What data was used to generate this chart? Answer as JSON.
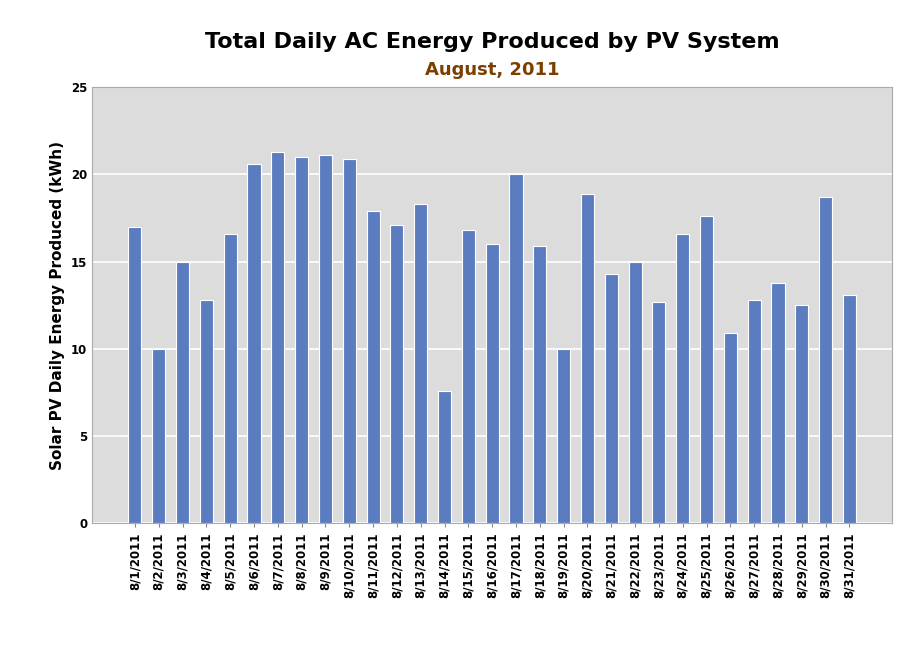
{
  "title_line1": "Total Daily AC Energy Produced by PV System",
  "title_line2": "August, 2011",
  "ylabel": "Solar PV Daily Energy Produced (kWh)",
  "categories": [
    "8/1/2011",
    "8/2/2011",
    "8/3/2011",
    "8/4/2011",
    "8/5/2011",
    "8/6/2011",
    "8/7/2011",
    "8/8/2011",
    "8/9/2011",
    "8/10/2011",
    "8/11/2011",
    "8/12/2011",
    "8/13/2011",
    "8/14/2011",
    "8/15/2011",
    "8/16/2011",
    "8/17/2011",
    "8/18/2011",
    "8/19/2011",
    "8/20/2011",
    "8/21/2011",
    "8/22/2011",
    "8/23/2011",
    "8/24/2011",
    "8/25/2011",
    "8/26/2011",
    "8/27/2011",
    "8/28/2011",
    "8/29/2011",
    "8/30/2011",
    "8/31/2011"
  ],
  "values": [
    17.0,
    10.0,
    15.0,
    12.8,
    16.6,
    20.6,
    21.3,
    21.0,
    21.1,
    20.9,
    17.9,
    17.1,
    18.3,
    7.6,
    16.8,
    16.0,
    20.0,
    15.9,
    10.0,
    18.9,
    14.3,
    15.0,
    12.7,
    16.6,
    17.6,
    10.9,
    12.8,
    13.8,
    12.5,
    18.7,
    13.1
  ],
  "bar_color": "#5B7DC0",
  "bar_edge_color": "#FFFFFF",
  "background_color": "#FFFFFF",
  "plot_background_color": "#DCDCDC",
  "ylim": [
    0,
    25
  ],
  "yticks": [
    0,
    5,
    10,
    15,
    20,
    25
  ],
  "grid_color": "#FFFFFF",
  "title_fontsize": 16,
  "subtitle_color": "#7B3F00",
  "subtitle_fontsize": 13,
  "ylabel_fontsize": 11,
  "tick_fontsize": 8.5,
  "bar_width": 0.55
}
